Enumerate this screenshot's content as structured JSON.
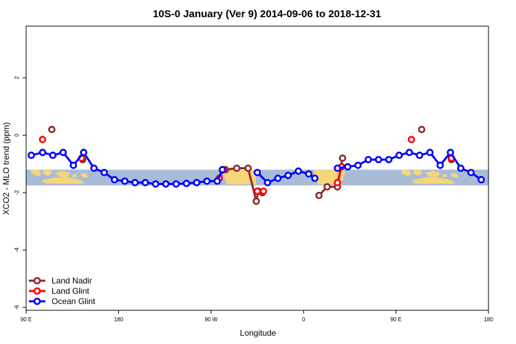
{
  "chart_data": {
    "type": "line",
    "title": "10S-0 January (Ver 9)   2014-09-06 to 2018-12-31",
    "xlabel": "Longitude",
    "ylabel": "XCO2 - MLO trend (ppm)",
    "xlim": [
      90,
      540
    ],
    "ylim": [
      -6.1,
      3.8
    ],
    "xticks": [
      {
        "value": 90,
        "label": "90 E"
      },
      {
        "value": 180,
        "label": "180"
      },
      {
        "value": 270,
        "label": "90 W"
      },
      {
        "value": 360,
        "label": "0"
      },
      {
        "value": 450,
        "label": "90 E"
      },
      {
        "value": 540,
        "label": "180"
      }
    ],
    "yticks": [
      {
        "value": -6,
        "label": "-6"
      },
      {
        "value": -4,
        "label": "-4"
      },
      {
        "value": -2,
        "label": "-2"
      },
      {
        "value": 0,
        "label": "0"
      },
      {
        "value": 2,
        "label": "2"
      }
    ],
    "band": {
      "ymin": -1.75,
      "ymax": -1.2,
      "color": "#a8bcd8",
      "land_color": "#f5d678"
    },
    "series": [
      {
        "name": "Land Nadir",
        "color": "#8b2b2b",
        "segments": [
          [
            [
              115,
              0.2
            ]
          ],
          [
            [
              145,
              -0.85
            ]
          ],
          [
            [
              284,
              -1.2
            ],
            [
              295,
              -1.15
            ],
            [
              306,
              -1.15
            ],
            [
              314,
              -2.3
            ],
            [
              316,
              -1.95
            ]
          ],
          [
            [
              320,
              -2.0
            ]
          ],
          [
            [
              375,
              -2.1
            ],
            [
              383,
              -1.8
            ],
            [
              393,
              -1.8
            ],
            [
              398,
              -0.8
            ]
          ],
          [
            [
              475,
              0.2
            ]
          ],
          [
            [
              504,
              -0.85
            ]
          ]
        ]
      },
      {
        "name": "Land Glint",
        "color": "#ff0000",
        "segments": [
          [
            [
              106,
              -0.15
            ]
          ],
          [
            [
              144,
              -0.8
            ]
          ],
          [
            [
              278,
              -1.5
            ],
            [
              282,
              -1.2
            ]
          ],
          [
            [
              315,
              -1.95
            ],
            [
              321,
              -1.95
            ]
          ],
          [
            [
              393,
              -1.65
            ],
            [
              397,
              -1.1
            ]
          ],
          [
            [
              465,
              -0.15
            ]
          ],
          [
            [
              504,
              -0.8
            ]
          ]
        ]
      },
      {
        "name": "Ocean Glint",
        "color": "#0000ff",
        "segments": [
          [
            [
              95,
              -0.7
            ],
            [
              106,
              -0.6
            ],
            [
              116,
              -0.7
            ],
            [
              126,
              -0.6
            ],
            [
              136,
              -1.05
            ],
            [
              146,
              -0.6
            ],
            [
              156,
              -1.15
            ],
            [
              166,
              -1.3
            ],
            [
              176,
              -1.55
            ],
            [
              186,
              -1.6
            ],
            [
              196,
              -1.65
            ],
            [
              206,
              -1.65
            ],
            [
              216,
              -1.7
            ],
            [
              226,
              -1.7
            ],
            [
              236,
              -1.7
            ],
            [
              246,
              -1.68
            ],
            [
              256,
              -1.65
            ],
            [
              266,
              -1.6
            ],
            [
              276,
              -1.6
            ],
            [
              281,
              -1.2
            ]
          ],
          [
            [
              315,
              -1.3
            ],
            [
              325,
              -1.65
            ],
            [
              335,
              -1.5
            ],
            [
              345,
              -1.4
            ],
            [
              355,
              -1.25
            ],
            [
              365,
              -1.35
            ],
            [
              371,
              -1.5
            ]
          ],
          [
            [
              393,
              -1.15
            ],
            [
              403,
              -1.1
            ],
            [
              413,
              -1.05
            ],
            [
              423,
              -0.85
            ],
            [
              433,
              -0.85
            ],
            [
              443,
              -0.85
            ],
            [
              453,
              -0.7
            ],
            [
              463,
              -0.6
            ],
            [
              473,
              -0.7
            ],
            [
              483,
              -0.6
            ],
            [
              493,
              -1.05
            ],
            [
              503,
              -0.6
            ],
            [
              513,
              -1.15
            ],
            [
              523,
              -1.3
            ],
            [
              533,
              -1.55
            ]
          ]
        ]
      }
    ],
    "legend": {
      "position": "bottom-left"
    }
  }
}
